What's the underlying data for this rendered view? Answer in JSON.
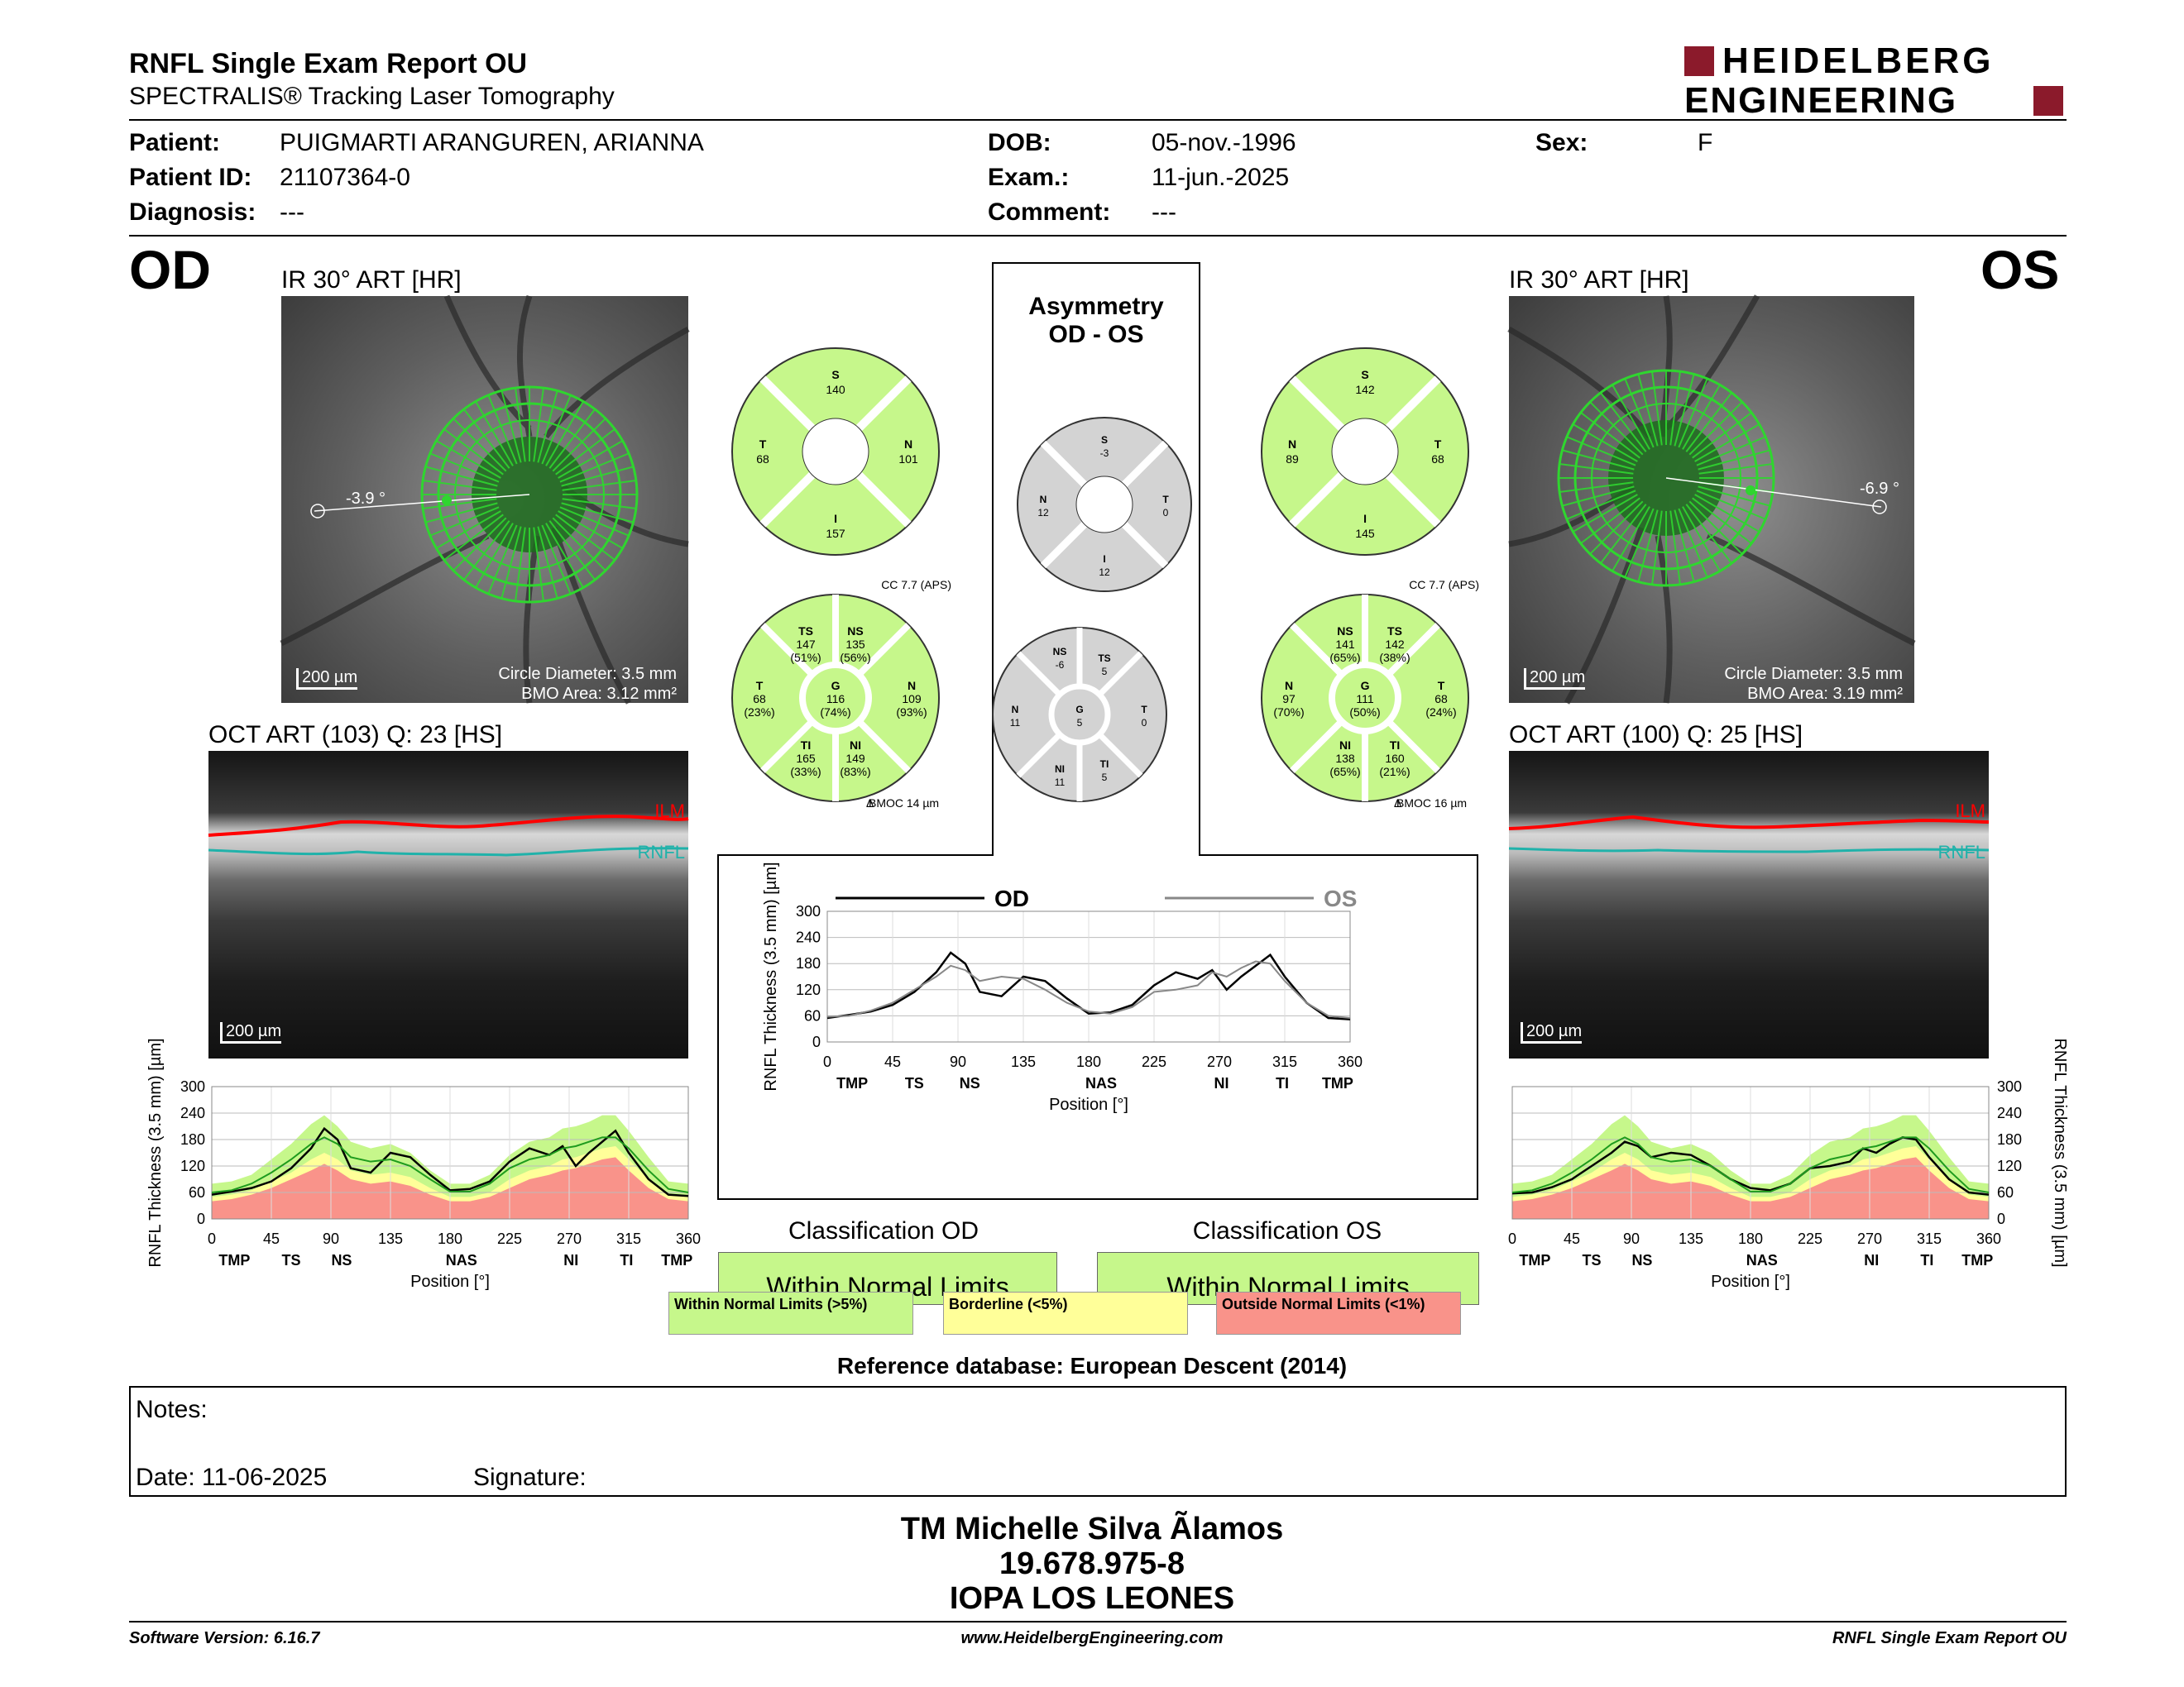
{
  "header": {
    "title": "RNFL Single Exam Report OU",
    "subtitle": "SPECTRALIS® Tracking Laser Tomography",
    "logo_line1": "HEIDELBERG",
    "logo_line2": "ENGINEERING"
  },
  "patient": {
    "patient_label": "Patient:",
    "patient_value": "PUIGMARTI ARANGUREN, ARIANNA",
    "id_label": "Patient ID:",
    "id_value": "21107364-0",
    "diagnosis_label": "Diagnosis:",
    "diagnosis_value": "---",
    "dob_label": "DOB:",
    "dob_value": "05-nov.-1996",
    "exam_label": "Exam.:",
    "exam_value": "11-jun.-2025",
    "comment_label": "Comment:",
    "comment_value": "---",
    "sex_label": "Sex:",
    "sex_value": "F"
  },
  "od": {
    "eye": "OD",
    "ir_title": "IR 30° ART [HR]",
    "angle": "-3.9 °",
    "scale": "200 µm",
    "circle_diameter": "Circle Diameter: 3.5 mm",
    "bmo_area": "BMO Area: 3.12 mm²",
    "oct_title": "OCT ART (103) Q: 23 [HS]",
    "oct_scale": "200 µm",
    "ilm": "ILM",
    "rnfl": "RNFL",
    "sectors4": {
      "S": "140",
      "N": "101",
      "I": "157",
      "T": "68"
    },
    "cc": "CC 7.7 (APS)",
    "sectors6": {
      "TS": [
        "147",
        "(51%)"
      ],
      "NS": [
        "135",
        "(56%)"
      ],
      "T": [
        "68",
        "(23%)"
      ],
      "G": [
        "116",
        "(74%)"
      ],
      "N": [
        "109",
        "(93%)"
      ],
      "TI": [
        "165",
        "(33%)"
      ],
      "NI": [
        "149",
        "(83%)"
      ]
    },
    "bmoc": "BMOC 14 µm",
    "classification_title": "Classification OD",
    "classification": "Within Normal Limits"
  },
  "os": {
    "eye": "OS",
    "ir_title": "IR 30° ART [HR]",
    "angle": "-6.9 °",
    "scale": "200 µm",
    "circle_diameter": "Circle Diameter: 3.5 mm",
    "bmo_area": "BMO Area: 3.19 mm²",
    "oct_title": "OCT ART (100) Q: 25 [HS]",
    "oct_scale": "200 µm",
    "ilm": "ILM",
    "rnfl": "RNFL",
    "sectors4": {
      "S": "142",
      "N": "89",
      "I": "145",
      "T": "68"
    },
    "cc": "CC 7.7 (APS)",
    "sectors6": {
      "NS": [
        "141",
        "(65%)"
      ],
      "TS": [
        "142",
        "(38%)"
      ],
      "N": [
        "97",
        "(70%)"
      ],
      "G": [
        "111",
        "(50%)"
      ],
      "T": [
        "68",
        "(24%)"
      ],
      "NI": [
        "138",
        "(65%)"
      ],
      "TI": [
        "160",
        "(21%)"
      ]
    },
    "bmoc": "BMOC 16 µm",
    "classification_title": "Classification OS",
    "classification": "Within Normal Limits"
  },
  "asymmetry": {
    "title1": "Asymmetry",
    "title2": "OD - OS",
    "sectors4": {
      "S": "-3",
      "N": "12",
      "T": "0",
      "I": "12"
    },
    "sectors6": {
      "NS": "-6",
      "TS": "5",
      "N": "11",
      "G": "5",
      "T": "0",
      "NI": "11",
      "TI": "5"
    }
  },
  "chart_data": [
    {
      "type": "line",
      "title": "",
      "ylabel": "RNFL Thickness (3.5 mm) [µm]",
      "xlabel": "Position [°]",
      "ylim": [
        0,
        300
      ],
      "xlim": [
        0,
        360
      ],
      "yticks": [
        "0",
        "60",
        "120",
        "180",
        "240",
        "300"
      ],
      "xticks": [
        "0",
        "45",
        "90",
        "135",
        "180",
        "225",
        "270",
        "315",
        "360"
      ],
      "sector_labels": [
        "TMP",
        "TS",
        "NS",
        "NAS",
        "NI",
        "TI",
        "TMP"
      ],
      "sector_positions": [
        18,
        63,
        103,
        198,
        285,
        329,
        369
      ],
      "legend": [
        "OD",
        "OS"
      ],
      "x": [
        0,
        15,
        30,
        45,
        60,
        75,
        85,
        95,
        105,
        120,
        135,
        150,
        165,
        180,
        195,
        210,
        225,
        240,
        255,
        265,
        275,
        285,
        295,
        305,
        315,
        330,
        345,
        360
      ],
      "series": [
        {
          "name": "OD",
          "values": [
            55,
            62,
            70,
            85,
            115,
            160,
            205,
            180,
            115,
            105,
            150,
            140,
            100,
            65,
            68,
            85,
            130,
            160,
            145,
            165,
            120,
            150,
            175,
            200,
            150,
            90,
            55,
            52
          ]
        },
        {
          "name": "OS",
          "values": [
            58,
            60,
            72,
            90,
            120,
            150,
            175,
            165,
            140,
            150,
            145,
            120,
            90,
            70,
            65,
            80,
            115,
            120,
            130,
            160,
            150,
            170,
            185,
            180,
            140,
            90,
            60,
            55
          ]
        }
      ]
    },
    {
      "type": "area",
      "eye": "OD",
      "ylabel": "RNFL Thickness (3.5 mm) [µm]",
      "xlabel": "Position [°]",
      "ylim": [
        0,
        300
      ],
      "xlim": [
        0,
        360
      ],
      "yticks": [
        "0",
        "60",
        "120",
        "180",
        "240",
        "300"
      ],
      "xticks": [
        "0",
        "45",
        "90",
        "135",
        "180",
        "225",
        "270",
        "315",
        "360"
      ],
      "sector_labels": [
        "TMP",
        "TS",
        "NS",
        "NAS",
        "NI",
        "TI",
        "TMP"
      ],
      "sector_positions": [
        18,
        63,
        103,
        198,
        285,
        329,
        369
      ],
      "x": [
        0,
        15,
        30,
        45,
        60,
        75,
        85,
        95,
        105,
        120,
        135,
        150,
        165,
        180,
        195,
        210,
        225,
        240,
        255,
        265,
        275,
        285,
        295,
        305,
        315,
        330,
        345,
        360
      ],
      "bands": {
        "outside": [
          40,
          45,
          55,
          70,
          90,
          110,
          125,
          110,
          90,
          80,
          85,
          75,
          55,
          40,
          40,
          50,
          70,
          90,
          100,
          110,
          115,
          125,
          135,
          140,
          110,
          70,
          45,
          40
        ],
        "borderline": [
          50,
          55,
          65,
          85,
          105,
          135,
          150,
          135,
          110,
          100,
          105,
          95,
          70,
          50,
          50,
          60,
          90,
          110,
          120,
          135,
          140,
          150,
          160,
          165,
          135,
          90,
          55,
          50
        ],
        "normal": [
          80,
          85,
          100,
          135,
          170,
          215,
          235,
          210,
          175,
          160,
          170,
          150,
          110,
          80,
          80,
          100,
          145,
          175,
          185,
          205,
          210,
          220,
          235,
          235,
          200,
          140,
          85,
          80
        ]
      },
      "series": [
        {
          "name": "OD",
          "values": [
            55,
            62,
            70,
            85,
            115,
            160,
            205,
            180,
            115,
            105,
            150,
            140,
            100,
            65,
            68,
            85,
            130,
            160,
            145,
            165,
            120,
            150,
            175,
            200,
            150,
            90,
            55,
            52
          ]
        },
        {
          "name": "",
          "values": [
            60,
            65,
            80,
            105,
            135,
            170,
            185,
            170,
            140,
            130,
            135,
            120,
            90,
            62,
            62,
            80,
            115,
            135,
            145,
            160,
            165,
            175,
            185,
            185,
            160,
            110,
            68,
            60
          ]
        }
      ]
    },
    {
      "type": "area",
      "eye": "OS",
      "ylabel": "RNFL Thickness (3.5 mm) [µm]",
      "xlabel": "Position [°]",
      "ylim": [
        0,
        300
      ],
      "xlim": [
        0,
        360
      ],
      "yticks": [
        "0",
        "60",
        "120",
        "180",
        "240",
        "300"
      ],
      "xticks": [
        "0",
        "45",
        "90",
        "135",
        "180",
        "225",
        "270",
        "315",
        "360"
      ],
      "sector_labels": [
        "TMP",
        "TS",
        "NS",
        "NAS",
        "NI",
        "TI",
        "TMP"
      ],
      "sector_positions": [
        18,
        63,
        103,
        198,
        285,
        329,
        369
      ],
      "x": [
        0,
        15,
        30,
        45,
        60,
        75,
        85,
        95,
        105,
        120,
        135,
        150,
        165,
        180,
        195,
        210,
        225,
        240,
        255,
        265,
        275,
        285,
        295,
        305,
        315,
        330,
        345,
        360
      ],
      "bands": {
        "outside": [
          40,
          45,
          55,
          70,
          90,
          110,
          125,
          110,
          90,
          80,
          85,
          75,
          55,
          40,
          40,
          50,
          70,
          90,
          100,
          110,
          115,
          125,
          135,
          140,
          110,
          70,
          45,
          40
        ],
        "borderline": [
          50,
          55,
          65,
          85,
          105,
          135,
          150,
          135,
          110,
          100,
          105,
          95,
          70,
          50,
          50,
          60,
          90,
          110,
          120,
          135,
          140,
          150,
          160,
          165,
          135,
          90,
          55,
          50
        ],
        "normal": [
          80,
          85,
          100,
          135,
          170,
          215,
          235,
          210,
          175,
          160,
          170,
          150,
          110,
          80,
          80,
          100,
          145,
          175,
          185,
          205,
          210,
          220,
          235,
          235,
          200,
          140,
          85,
          80
        ]
      },
      "series": [
        {
          "name": "OS",
          "values": [
            58,
            60,
            72,
            90,
            120,
            150,
            175,
            165,
            140,
            150,
            145,
            120,
            90,
            70,
            65,
            80,
            115,
            120,
            130,
            160,
            150,
            170,
            185,
            180,
            140,
            90,
            60,
            55
          ]
        },
        {
          "name": "",
          "values": [
            60,
            65,
            80,
            105,
            135,
            170,
            185,
            170,
            140,
            130,
            135,
            120,
            90,
            62,
            62,
            80,
            115,
            135,
            145,
            160,
            165,
            175,
            185,
            185,
            160,
            110,
            68,
            60
          ]
        }
      ]
    }
  ],
  "legend": {
    "normal": "Within Normal Limits (>5%)",
    "borderline": "Borderline (<5%)",
    "outside": "Outside Normal Limits (<1%)"
  },
  "reference_db": "Reference database: European Descent (2014)",
  "notes": {
    "notes_label": "Notes:",
    "date_label": "Date: 11-06-2025",
    "signature_label": "Signature:"
  },
  "signoff": {
    "name": "TM Michelle Silva Ãlamos",
    "id": "19.678.975-8",
    "org": "IOPA LOS LEONES"
  },
  "footer": {
    "software": "Software Version: 6.16.7",
    "website": "www.HeidelbergEngineering.com",
    "report": "RNFL Single Exam Report OU"
  },
  "colors": {
    "normal": "#c6f78b",
    "borderline": "#ffff99",
    "outside": "#f9938a",
    "sector_gray": "#d3d3d3",
    "brand_red": "#8b1a2b",
    "ilm": "#ff0000",
    "rnfl": "#20b2aa"
  }
}
